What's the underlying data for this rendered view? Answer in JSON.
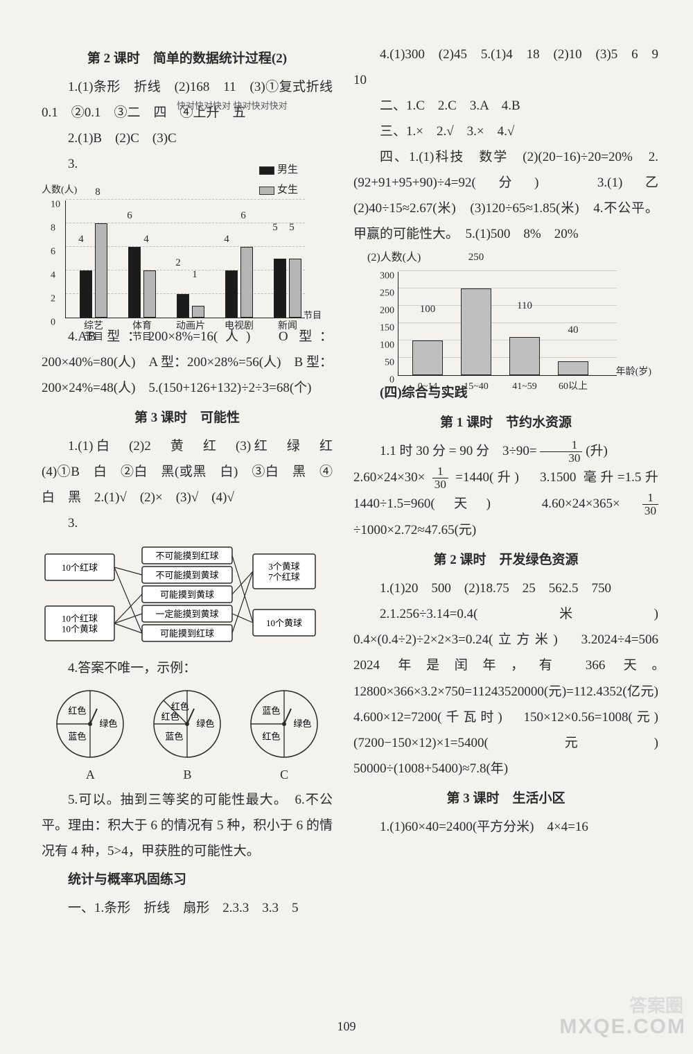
{
  "page_number": "109",
  "watermark_main": "MXQE.COM",
  "watermark_badge": "答案圈",
  "annotation_small": "快对快对快对\n快对快对快对",
  "left": {
    "h1": "第 2 课时　简单的数据统计过程(2)",
    "p1": "1.(1)条形　折线　(2)168　11　(3)①复式折线　0.1　②0.1　③二　四　④上升　五",
    "p2": "2.(1)B　(2)C　(3)C",
    "p3": "3.",
    "chart1": {
      "type": "bar",
      "y_title": "人数(人)",
      "x_title": "节目",
      "legend": [
        {
          "label": "男生",
          "color": "#1b1b1b"
        },
        {
          "label": "女生",
          "color": "#b6b6b6"
        }
      ],
      "ylim": [
        0,
        10
      ],
      "ytick_step": 2,
      "categories": [
        "综艺\n节目",
        "体育\n节目",
        "动画片",
        "电视剧",
        "新闻"
      ],
      "boys": [
        4,
        6,
        2,
        4,
        5
      ],
      "girls": [
        8,
        4,
        1,
        6,
        5
      ],
      "bar_colors": {
        "boys": "#1b1b1b",
        "girls": "#b6b6b6"
      },
      "grid_color": "#bdbdbd"
    },
    "p4": "4.AB 型：200×8%=16(人)　O 型：200×40%=80(人)　A 型：200×28%=56(人)　B 型：200×24%=48(人)　5.(150+126+132)÷2÷3=68(个)",
    "h2": "第 3 课时　可能性",
    "p5": "1.(1)白　(2)2　黄　红　(3)红　绿　红　(4)①B　白　②白　黑(或黑　白)　③白　黑　④白　黑　2.(1)√　(2)×　(3)√　(4)√",
    "p6": "3.",
    "diagram": {
      "left_boxes": [
        "10个红球",
        "10个红球\n10个黄球"
      ],
      "mid_boxes": [
        "不可能摸到红球",
        "不可能摸到黄球",
        "可能摸到黄球",
        "一定能摸到黄球",
        "可能摸到红球"
      ],
      "right_boxes": [
        "3个黄球\n7个红球",
        "10个黄球"
      ],
      "edges": [
        [
          0,
          1
        ],
        [
          0,
          4
        ],
        [
          1,
          2
        ],
        [
          1,
          3
        ],
        [
          1,
          4
        ],
        [
          2,
          0
        ],
        [
          2,
          3
        ],
        [
          4,
          2
        ],
        [
          4,
          3
        ]
      ],
      "box_fill": "#ffffff",
      "box_stroke": "#2a2a2a"
    },
    "p7": "4.答案不唯一，示例：",
    "pies": {
      "labels": [
        "A",
        "B",
        "C"
      ],
      "stroke": "#2a2a2a",
      "A": {
        "sectors": [
          {
            "label": "蓝色",
            "start": 180,
            "end": 270
          },
          {
            "label": "红色",
            "start": 270,
            "end": 360
          },
          {
            "label": "绿色",
            "start": 0,
            "end": 180
          }
        ]
      },
      "B": {
        "sectors": [
          {
            "label": "蓝色",
            "start": 180,
            "end": 270
          },
          {
            "label": "红色",
            "start": 270,
            "end": 315
          },
          {
            "label": "红色",
            "start": 315,
            "end": 360
          },
          {
            "label": "绿色",
            "start": 0,
            "end": 180
          }
        ]
      },
      "C": {
        "sectors": [
          {
            "label": "红色",
            "start": 180,
            "end": 270
          },
          {
            "label": "蓝色",
            "start": 270,
            "end": 360
          },
          {
            "label": "绿色",
            "start": 0,
            "end": 180
          }
        ]
      }
    },
    "p8": "5.可以。抽到三等奖的可能性最大。　6.不公平。理由：积大于 6 的情况有 5 种，积小于 6 的情况有 4 种，5>4，甲获胜的可能性大。",
    "h3": "统计与概率巩固练习",
    "p9": "一、1.条形　折线　扇形　2.3.3　3.3　5"
  },
  "right": {
    "p1": "4.(1)300　(2)45　5.(1)4　18　(2)10　(3)5　6　9　10",
    "p2": "二、1.C　2.C　3.A　4.B",
    "p3": "三、1.×　2.√　3.×　4.√",
    "p4": "四、1.(1)科技　数学　(2)(20−16)÷20=20%　2.(92+91+95+90)÷4=92(分)　3.(1)乙　(2)40÷15≈2.67(米)　(3)120÷65≈1.85(米)　4.不公平。甲赢的可能性大。　5.(1)500　8%　20%",
    "chart2_title": "(2)人数(人)",
    "chart2": {
      "type": "bar",
      "categories": [
        "0~14",
        "15~40",
        "41~59",
        "60以上"
      ],
      "values": [
        100,
        250,
        110,
        40
      ],
      "ylim": [
        0,
        300
      ],
      "ytick_step": 50,
      "bar_fill": "#bfbfbf",
      "bar_stroke": "#2a2a2a",
      "x_title": "年龄(岁)"
    },
    "h1": "(四)综合与实践",
    "h2": "第 1 课时　节约水资源",
    "p5_pre": "1.1 时 30 分 = 90 分　3÷90=",
    "p5_frac_n": "1",
    "p5_frac_d": "30",
    "p5_post": "(升)",
    "p6_pre": "2.60×24×30×",
    "p6_frac_n": "1",
    "p6_frac_d": "30",
    "p6_mid": "=1440(升)　3.1500 毫升=1.5升　1440÷1.5=960(天)　4.60×24×365×",
    "p6_frac2_n": "1",
    "p6_frac2_d": "30",
    "p6_post": "÷1000×2.72≈47.65(元)",
    "h3": "第 2 课时　开发绿色资源",
    "p7": "1.(1)20　500　(2)18.75　25　562.5　750",
    "p8": "2.1.256÷3.14=0.4(米)　0.4×(0.4÷2)÷2×2×3=0.24(立方米)　3.2024÷4=506　2024 年是闰年，有 366 天。　12800×366×3.2×750=11243520000(元)=112.4352(亿元)　4.600×12=7200(千瓦时)　150×12×0.56=1008(元)　(7200−150×12)×1=5400(元)　50000÷(1008+5400)≈7.8(年)",
    "h4": "第 3 课时　生活小区",
    "p9": "1.(1)60×40=2400(平方分米)　4×4=16"
  }
}
